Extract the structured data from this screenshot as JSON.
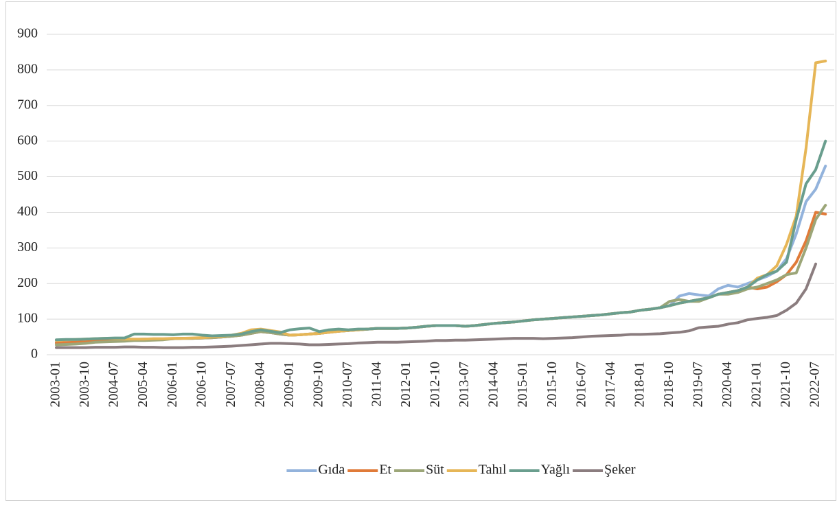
{
  "chart_data": {
    "type": "line",
    "categories": [
      "2003-01",
      null,
      null,
      "2003-10",
      null,
      null,
      "2004-07",
      null,
      null,
      "2005-04",
      null,
      null,
      "2006-01",
      null,
      null,
      "2006-10",
      null,
      null,
      "2007-07",
      null,
      null,
      "2008-04",
      null,
      null,
      "2009-01",
      null,
      null,
      "2009-10",
      null,
      null,
      "2010-07",
      null,
      null,
      "2011-04",
      null,
      null,
      "2012-01",
      null,
      null,
      "2012-10",
      null,
      null,
      "2013-07",
      null,
      null,
      "2014-04",
      null,
      null,
      "2015-01",
      null,
      null,
      "2015-10",
      null,
      null,
      "2016-07",
      null,
      null,
      "2017-04",
      null,
      null,
      "2018-01",
      null,
      null,
      "2018-10",
      null,
      null,
      "2019-07",
      null,
      null,
      "2020-04",
      null,
      null,
      "2021-01",
      null,
      null,
      "2021-10",
      null,
      null,
      "2022-07",
      null
    ],
    "series": [
      {
        "name": "Gıda",
        "color": "#93b3dc",
        "values": [
          35,
          36,
          37,
          38,
          40,
          41,
          41,
          42,
          43,
          44,
          44,
          44,
          45,
          46,
          46,
          47,
          48,
          50,
          52,
          55,
          60,
          65,
          62,
          58,
          55,
          56,
          58,
          60,
          63,
          66,
          68,
          70,
          72,
          74,
          74,
          74,
          75,
          77,
          80,
          82,
          82,
          82,
          80,
          82,
          85,
          88,
          90,
          92,
          95,
          98,
          100,
          102,
          104,
          106,
          108,
          110,
          112,
          115,
          118,
          120,
          125,
          128,
          132,
          138,
          165,
          172,
          168,
          165,
          185,
          195,
          190,
          200,
          210,
          220,
          235,
          270,
          340,
          430,
          465,
          530
        ]
      },
      {
        "name": "Et",
        "color": "#e07b39",
        "values": [
          33,
          34,
          35,
          36,
          40,
          41,
          41,
          42,
          43,
          44,
          44,
          44,
          45,
          46,
          46,
          47,
          48,
          50,
          52,
          55,
          60,
          65,
          62,
          58,
          55,
          56,
          58,
          60,
          63,
          66,
          68,
          70,
          72,
          74,
          74,
          74,
          75,
          77,
          80,
          82,
          82,
          82,
          80,
          82,
          85,
          88,
          90,
          92,
          95,
          98,
          100,
          102,
          104,
          106,
          108,
          110,
          112,
          115,
          118,
          120,
          125,
          128,
          132,
          138,
          145,
          150,
          155,
          160,
          170,
          175,
          180,
          190,
          185,
          190,
          205,
          225,
          260,
          320,
          400,
          395
        ]
      },
      {
        "name": "Süt",
        "color": "#9ca678",
        "values": [
          28,
          29,
          30,
          32,
          35,
          36,
          37,
          38,
          40,
          40,
          41,
          42,
          45,
          46,
          46,
          47,
          48,
          50,
          52,
          55,
          60,
          65,
          62,
          58,
          55,
          56,
          58,
          60,
          63,
          66,
          68,
          70,
          72,
          74,
          74,
          74,
          75,
          77,
          80,
          82,
          82,
          82,
          80,
          82,
          85,
          88,
          90,
          92,
          95,
          98,
          100,
          102,
          104,
          106,
          108,
          110,
          112,
          115,
          118,
          120,
          125,
          128,
          132,
          150,
          155,
          150,
          150,
          160,
          170,
          170,
          175,
          185,
          190,
          200,
          210,
          225,
          230,
          300,
          380,
          420
        ]
      },
      {
        "name": "Tahıl",
        "color": "#e6b657",
        "values": [
          40,
          42,
          43,
          44,
          45,
          46,
          45,
          44,
          44,
          44,
          45,
          45,
          46,
          46,
          47,
          48,
          50,
          52,
          55,
          60,
          70,
          72,
          68,
          64,
          55,
          56,
          58,
          60,
          63,
          66,
          68,
          70,
          72,
          74,
          74,
          74,
          75,
          77,
          80,
          82,
          82,
          82,
          80,
          82,
          85,
          88,
          90,
          92,
          95,
          98,
          100,
          102,
          104,
          106,
          108,
          110,
          112,
          115,
          118,
          120,
          125,
          128,
          132,
          138,
          145,
          150,
          155,
          160,
          170,
          175,
          180,
          190,
          215,
          225,
          250,
          310,
          390,
          580,
          820,
          825
        ]
      },
      {
        "name": "Yağlı",
        "color": "#6a9e8e",
        "values": [
          42,
          43,
          43,
          44,
          45,
          46,
          47,
          47,
          58,
          58,
          57,
          57,
          56,
          58,
          58,
          55,
          53,
          54,
          55,
          58,
          65,
          70,
          66,
          62,
          70,
          73,
          75,
          65,
          70,
          72,
          70,
          72,
          72,
          74,
          74,
          74,
          75,
          77,
          80,
          82,
          82,
          82,
          80,
          82,
          85,
          88,
          90,
          92,
          95,
          98,
          100,
          102,
          104,
          106,
          108,
          110,
          112,
          115,
          118,
          120,
          125,
          128,
          132,
          138,
          145,
          150,
          155,
          160,
          170,
          175,
          180,
          190,
          210,
          225,
          235,
          260,
          380,
          480,
          520,
          600
        ]
      },
      {
        "name": "Şeker",
        "color": "#8b7d7f",
        "values": [
          20,
          20,
          20,
          20,
          21,
          21,
          21,
          22,
          22,
          21,
          21,
          20,
          20,
          20,
          21,
          21,
          22,
          23,
          24,
          26,
          28,
          30,
          32,
          32,
          31,
          30,
          28,
          28,
          29,
          30,
          31,
          33,
          34,
          35,
          35,
          35,
          36,
          37,
          38,
          40,
          40,
          41,
          41,
          42,
          43,
          44,
          45,
          46,
          46,
          46,
          45,
          46,
          47,
          48,
          50,
          52,
          53,
          54,
          55,
          57,
          57,
          58,
          59,
          61,
          63,
          67,
          76,
          78,
          80,
          86,
          90,
          98,
          102,
          105,
          110,
          125,
          145,
          185,
          255,
          null
        ]
      }
    ],
    "ylim": [
      0,
      900
    ],
    "yticks": [
      0,
      100,
      200,
      300,
      400,
      500,
      600,
      700,
      800,
      900
    ],
    "grid": true,
    "legend": "bottom"
  }
}
